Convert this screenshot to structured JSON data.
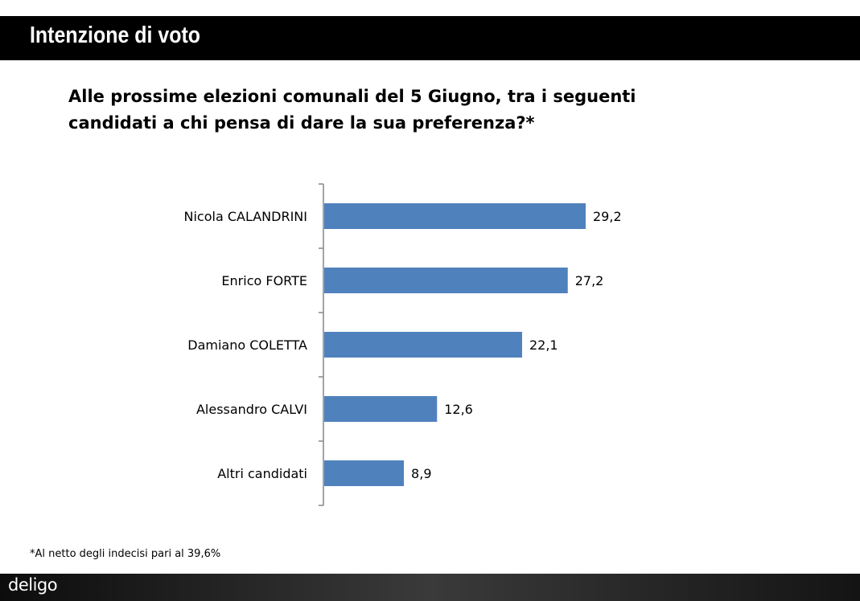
{
  "header": {
    "title": "Intenzione di voto"
  },
  "question": "Alle prossime elezioni comunali del 5 Giugno, tra i seguenti candidati a chi pensa di dare la sua preferenza?*",
  "footnote": "*Al netto degli indecisi pari al 39,6%",
  "footer": {
    "logo_text": "deligo"
  },
  "colors": {
    "bar": "#4f81bd",
    "title_bar": "#000000"
  },
  "chart_data": {
    "type": "bar",
    "orientation": "horizontal",
    "categories": [
      "Nicola CALANDRINI",
      "Enrico FORTE",
      "Damiano COLETTA",
      "Alessandro CALVI",
      "Altri candidati"
    ],
    "values": [
      29.2,
      27.2,
      22.1,
      12.6,
      8.9
    ],
    "value_labels": [
      "29,2",
      "27,2",
      "22,1",
      "12,6",
      "8,9"
    ],
    "xlim": [
      0,
      40
    ],
    "grid": false,
    "legend": "none"
  }
}
